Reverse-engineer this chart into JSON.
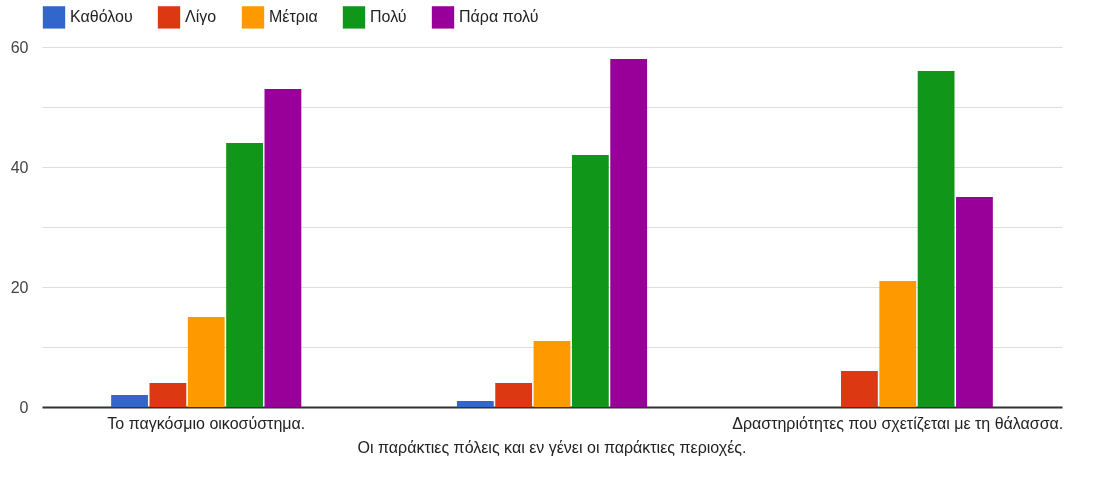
{
  "chart_data": {
    "type": "bar",
    "categories": [
      "Το παγκόσμιο οικοσύστημα.",
      "Οι παράκτιες πόλεις και εν γένει οι παράκτιες περιοχές.",
      "Δραστηριότητες που σχετίζεται με τη θάλασσα."
    ],
    "series": [
      {
        "name": "Καθόλου",
        "color": "#3366cc",
        "values": [
          2,
          1,
          0
        ]
      },
      {
        "name": "Λίγο",
        "color": "#dc3912",
        "values": [
          4,
          4,
          6
        ]
      },
      {
        "name": "Μέτρια",
        "color": "#ff9900",
        "values": [
          15,
          11,
          21
        ]
      },
      {
        "name": "Πολύ",
        "color": "#109618",
        "values": [
          44,
          42,
          56
        ]
      },
      {
        "name": "Πάρα πολύ",
        "color": "#990099",
        "values": [
          53,
          58,
          35
        ]
      }
    ],
    "ylim": [
      0,
      60
    ],
    "yticks": [
      0,
      {
        "value": 10,
        "label": null
      },
      20,
      {
        "value": 30,
        "label": null
      },
      40,
      {
        "value": 50,
        "label": null
      },
      60
    ],
    "grid": "y",
    "legend": "top"
  }
}
